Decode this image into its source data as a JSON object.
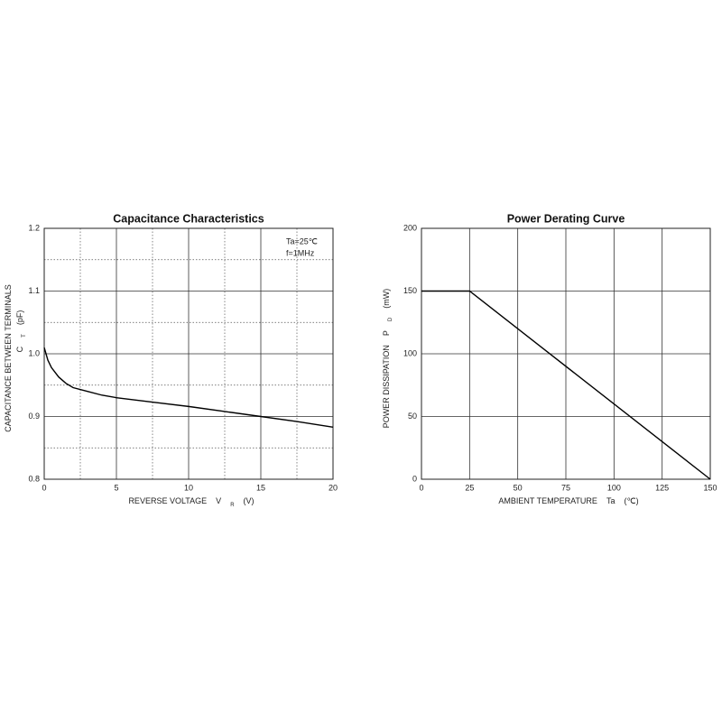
{
  "chart_data": [
    {
      "type": "line",
      "title": "Capacitance Characteristics",
      "x": [
        0,
        0.25,
        0.5,
        1,
        1.5,
        2,
        3,
        4,
        5,
        7.5,
        10,
        12.5,
        15,
        17.5,
        20
      ],
      "series": [
        {
          "color": "#000000",
          "values": [
            1.01,
            0.99,
            0.978,
            0.963,
            0.953,
            0.946,
            0.94,
            0.934,
            0.93,
            0.923,
            0.916,
            0.908,
            0.9,
            0.892,
            0.883
          ]
        }
      ],
      "xlim": [
        0,
        20
      ],
      "xticks": [
        0,
        5,
        10,
        15,
        20
      ],
      "minor_xticks": [
        2.5,
        7.5,
        12.5,
        17.5
      ],
      "ylim": [
        0.8,
        1.2
      ],
      "yticks": [
        0.8,
        0.9,
        {
          "value": 1,
          "label": "1.0"
        },
        1.1,
        1.2
      ],
      "minor_yticks": [
        0.85,
        0.95,
        1.05,
        1.15
      ],
      "grid": true,
      "xlabel": {
        "text": "REVERSE VOLTAGE",
        "symbol": "V",
        "subscript": "R",
        "unit": "(V)"
      },
      "ylabel": {
        "text": "CAPACITANCE BETWEEN TERMINALS",
        "symbol": "C",
        "subscript": "T",
        "unit": "(pF)"
      },
      "annotations": [
        "Ta=25℃",
        "f=1MHz"
      ]
    },
    {
      "type": "line",
      "title": "Power Derating Curve",
      "x": [
        0,
        25,
        150
      ],
      "series": [
        {
          "color": "#000000",
          "values": [
            150,
            150,
            0
          ]
        }
      ],
      "xlim": [
        0,
        150
      ],
      "xticks": [
        0,
        25,
        50,
        75,
        100,
        125,
        150
      ],
      "ylim": [
        0,
        200
      ],
      "yticks": [
        0,
        50,
        100,
        150,
        200
      ],
      "grid": true,
      "xlabel": {
        "text": "AMBIENT TEMPERATURE",
        "symbol": "Ta",
        "unit": "(℃)"
      },
      "ylabel": {
        "text": "POWER DISSIPATION",
        "symbol": "P",
        "subscript": "D",
        "unit": "(mW)"
      }
    }
  ]
}
